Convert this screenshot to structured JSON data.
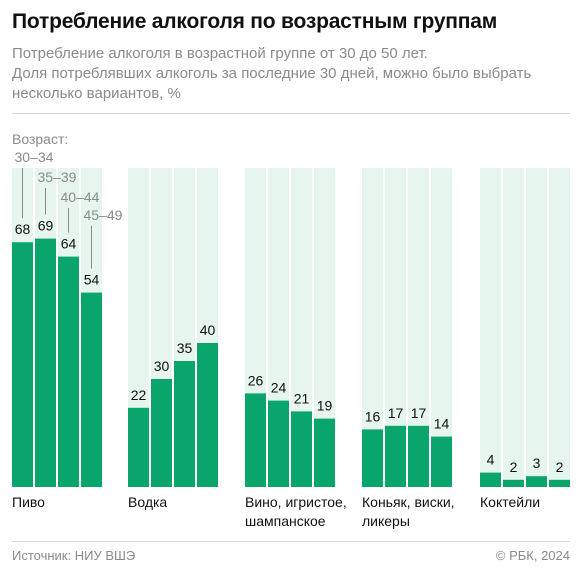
{
  "title": "Потребление алкоголя по возрастным группам",
  "subtitle_lines": [
    "Потребление алкоголя в возрастной группе от 30 до 50 лет.",
    "Доля потреблявших алкоголь за последние 30 дней, можно было выбрать",
    "несколько вариантов, %"
  ],
  "source": "Источник: НИУ ВШЭ",
  "copyright": "© РБК, 2024",
  "colors": {
    "bar": "#0aa56a",
    "panel": "#e6f6ee",
    "text": "#111111",
    "muted": "#8a8a8a"
  },
  "chart_data": {
    "type": "bar",
    "legend_title": "Возраст:",
    "ylim": [
      0,
      100
    ],
    "series": [
      {
        "name": "30–34",
        "values": [
          68,
          22,
          26,
          16,
          4
        ]
      },
      {
        "name": "35–39",
        "values": [
          69,
          30,
          24,
          17,
          2
        ]
      },
      {
        "name": "40–44",
        "values": [
          64,
          35,
          21,
          17,
          3
        ]
      },
      {
        "name": "45–49",
        "values": [
          54,
          40,
          19,
          14,
          2
        ]
      }
    ],
    "categories": [
      {
        "lines": [
          "Пиво"
        ]
      },
      {
        "lines": [
          "Водка"
        ]
      },
      {
        "lines": [
          "Вино, игристое,",
          "шампанское"
        ]
      },
      {
        "lines": [
          "Коньяк, виски,",
          "ликеры"
        ]
      },
      {
        "lines": [
          "Коктейли"
        ]
      }
    ]
  }
}
